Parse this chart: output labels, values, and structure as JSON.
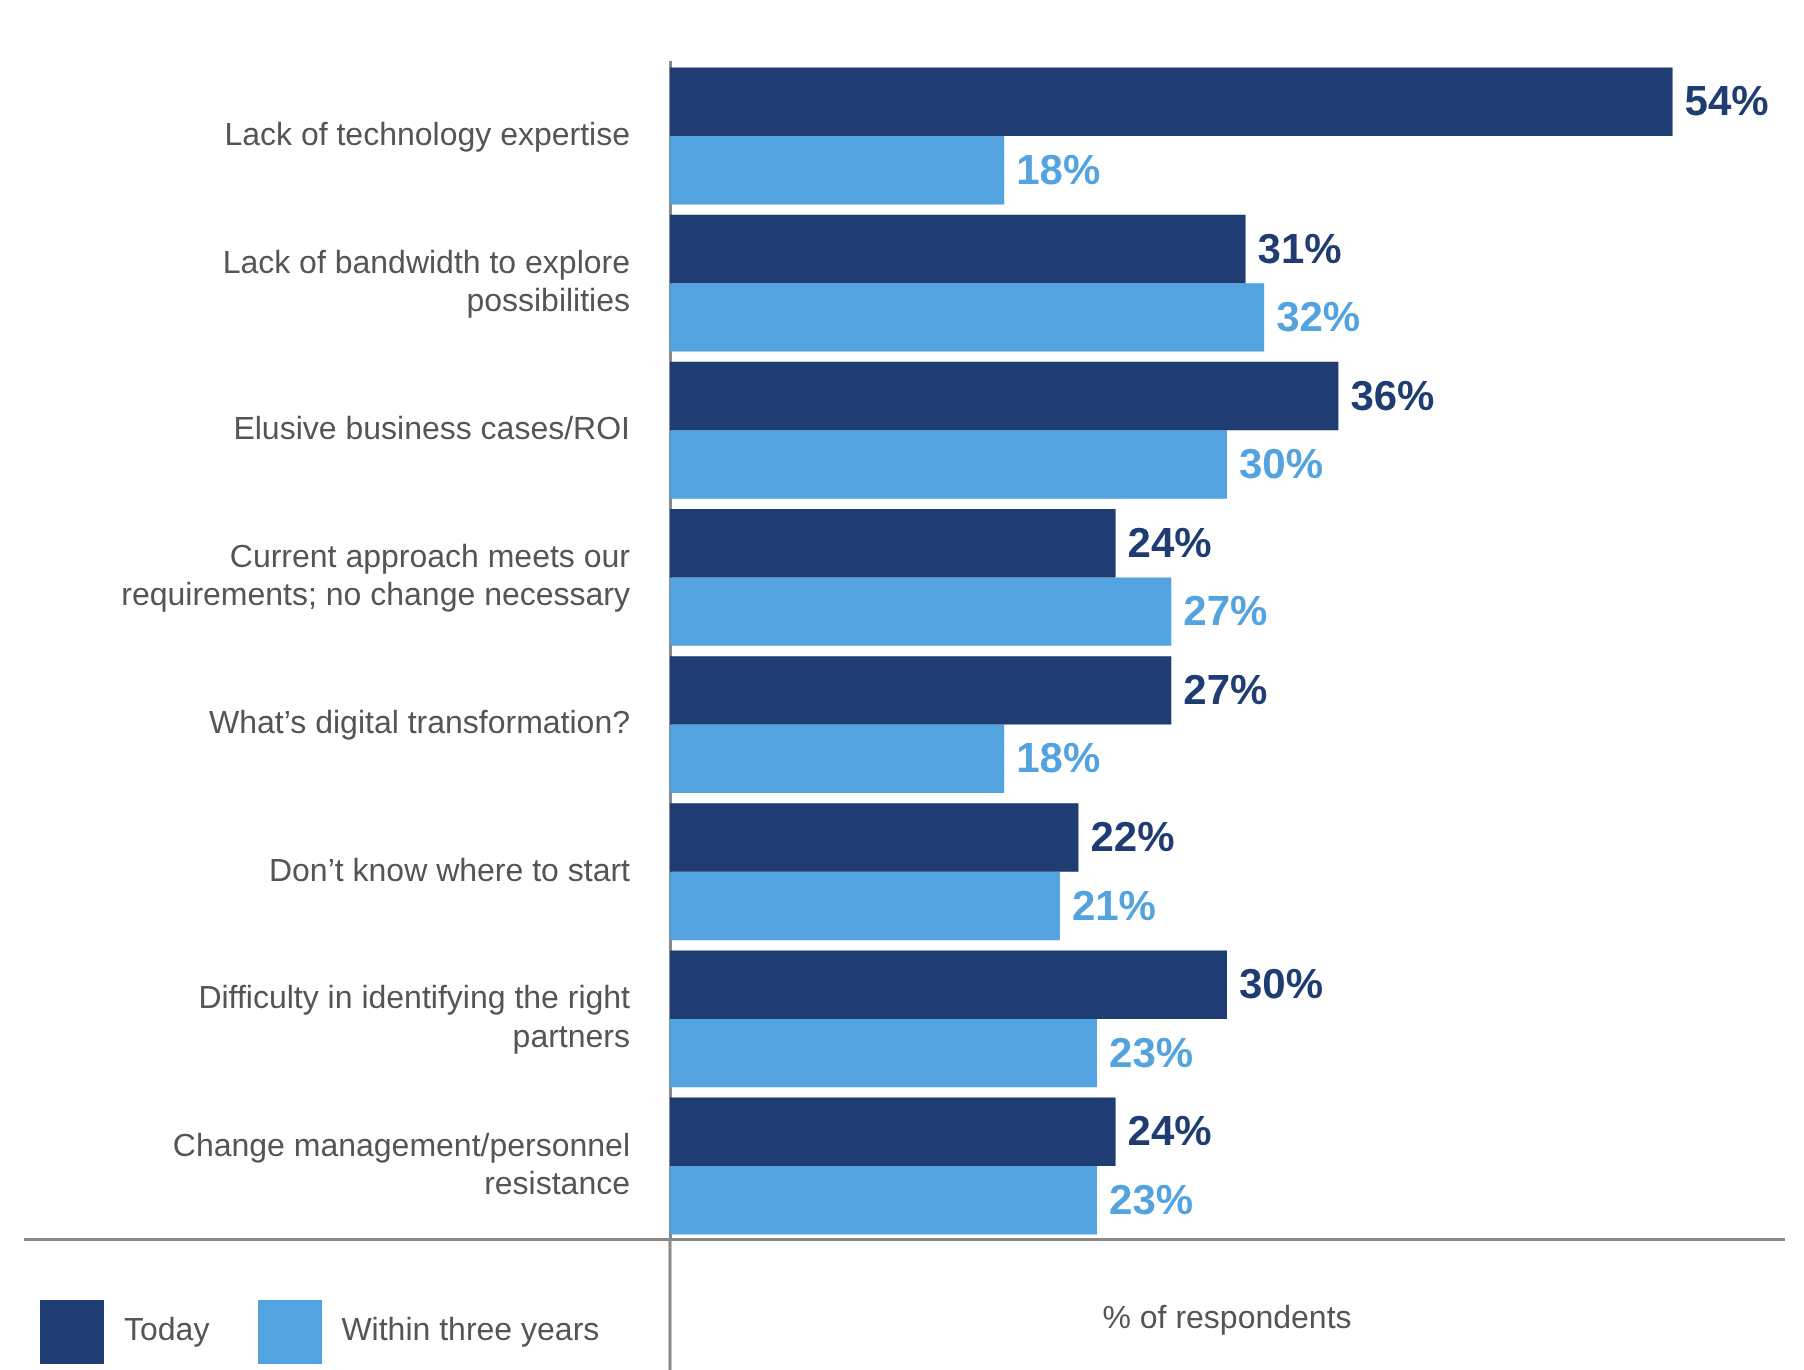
{
  "chart_data": {
    "type": "bar",
    "orientation": "horizontal",
    "xlabel": "% of respondents",
    "categories": [
      "Lack of technology expertise",
      "Lack of bandwidth to explore possibilities",
      "Elusive business cases/ROI",
      "Current approach meets our requirements; no change necessary",
      "What’s digital transformation?",
      "Don’t know where to start",
      "Difficulty in identifying the right partners",
      "Change management/personnel resistance"
    ],
    "series": [
      {
        "name": "Today",
        "color": "#1f3d73",
        "values": [
          54,
          31,
          36,
          24,
          27,
          22,
          30,
          24
        ],
        "value_labels": [
          "54%",
          "31%",
          "36%",
          "24%",
          "27%",
          "22%",
          "30%",
          "24%"
        ]
      },
      {
        "name": "Within three years",
        "color": "#52a3df",
        "values": [
          18,
          32,
          30,
          27,
          18,
          21,
          23,
          23
        ],
        "value_labels": [
          "18%",
          "32%",
          "30%",
          "27%",
          "18%",
          "21%",
          "23%",
          "23%"
        ]
      }
    ],
    "xlim": [
      0,
      60
    ],
    "grid": false,
    "legend": "bottom left",
    "tick_labels": "y"
  }
}
